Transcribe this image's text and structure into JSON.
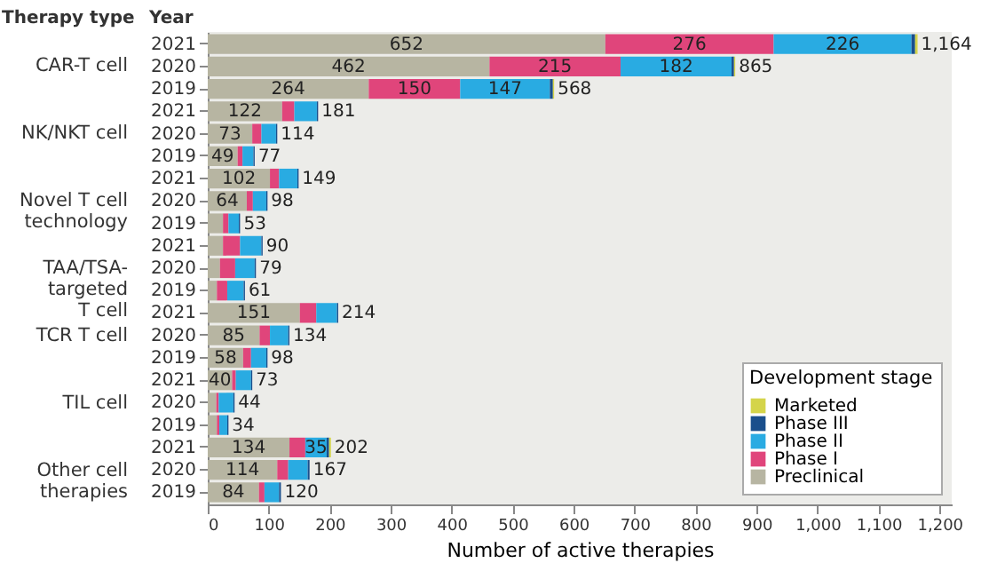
{
  "chart_data": {
    "type": "bar",
    "orientation": "horizontal",
    "stacked": true,
    "categories": [
      "2021",
      "2020",
      "2019",
      "2021",
      "2020",
      "2019",
      "2021",
      "2020",
      "2019",
      "2021",
      "2020",
      "2019",
      "2021",
      "2020",
      "2019",
      "2021",
      "2020",
      "2019",
      "2021",
      "2020",
      "2019"
    ],
    "series": [
      {
        "name": "Preclinical",
        "color": "#b7b5a2",
        "values": [
          652,
          462,
          264,
          122,
          73,
          49,
          102,
          64,
          25,
          25,
          20,
          15,
          151,
          85,
          58,
          40,
          14,
          15,
          134,
          114,
          84
        ],
        "value_labels": [
          "652",
          "462",
          "264",
          "122",
          "73",
          "49",
          "102",
          "64",
          null,
          null,
          null,
          null,
          "151",
          "85",
          "58",
          "40",
          null,
          null,
          "134",
          "114",
          "84"
        ]
      },
      {
        "name": "Phase I",
        "color": "#e0457b",
        "values": [
          276,
          215,
          150,
          20,
          15,
          8,
          15,
          10,
          9,
          28,
          25,
          17,
          27,
          17,
          13,
          6,
          4,
          4,
          26,
          18,
          9
        ],
        "value_labels": [
          "276",
          "215",
          "150",
          null,
          null,
          null,
          null,
          null,
          null,
          null,
          null,
          null,
          null,
          null,
          null,
          null,
          null,
          null,
          null,
          null,
          null
        ]
      },
      {
        "name": "Phase II",
        "color": "#29abe2",
        "values": [
          226,
          182,
          147,
          37,
          24,
          18,
          30,
          22,
          17,
          35,
          32,
          27,
          34,
          30,
          25,
          25,
          24,
          13,
          35,
          32,
          24
        ],
        "value_labels": [
          "226",
          "182",
          "147",
          null,
          null,
          null,
          null,
          null,
          null,
          null,
          null,
          null,
          null,
          null,
          null,
          null,
          null,
          null,
          "35",
          null,
          null
        ]
      },
      {
        "name": "Phase III",
        "color": "#1a4f8c",
        "values": [
          6,
          4,
          5,
          2,
          2,
          2,
          2,
          2,
          2,
          2,
          2,
          2,
          2,
          2,
          2,
          2,
          2,
          2,
          4,
          3,
          3
        ]
      },
      {
        "name": "Marketed",
        "color": "#d4d44a",
        "values": [
          4,
          2,
          2,
          0,
          0,
          0,
          0,
          0,
          0,
          0,
          0,
          0,
          0,
          0,
          0,
          0,
          0,
          0,
          3,
          0,
          0
        ]
      }
    ],
    "totals": [
      "1,164",
      "865",
      "568",
      "181",
      "114",
      "77",
      "149",
      "98",
      "53",
      "90",
      "79",
      "61",
      "214",
      "134",
      "98",
      "73",
      "44",
      "34",
      "202",
      "167",
      "120"
    ],
    "xlabel": "Number of active therapies",
    "legend_title": "Development stage",
    "legend": "bottom right",
    "xlim": [
      0,
      1220
    ],
    "xticks": [
      0,
      100,
      200,
      300,
      400,
      500,
      600,
      700,
      800,
      900,
      {
        "value": 1000,
        "label": "1,000"
      },
      {
        "value": 1100,
        "label": "1,100"
      },
      {
        "value": 1200,
        "label": "1,200"
      }
    ],
    "grid": false,
    "annotations": [
      "Therapy type",
      "Year",
      "CAR-T cell",
      "NK/NKT cell",
      "Novel T cell\ntechnology",
      "TAA/TSA-\ntargeted\nT cell",
      "TCR T cell",
      "TIL cell",
      "Other cell\ntherapies"
    ]
  }
}
